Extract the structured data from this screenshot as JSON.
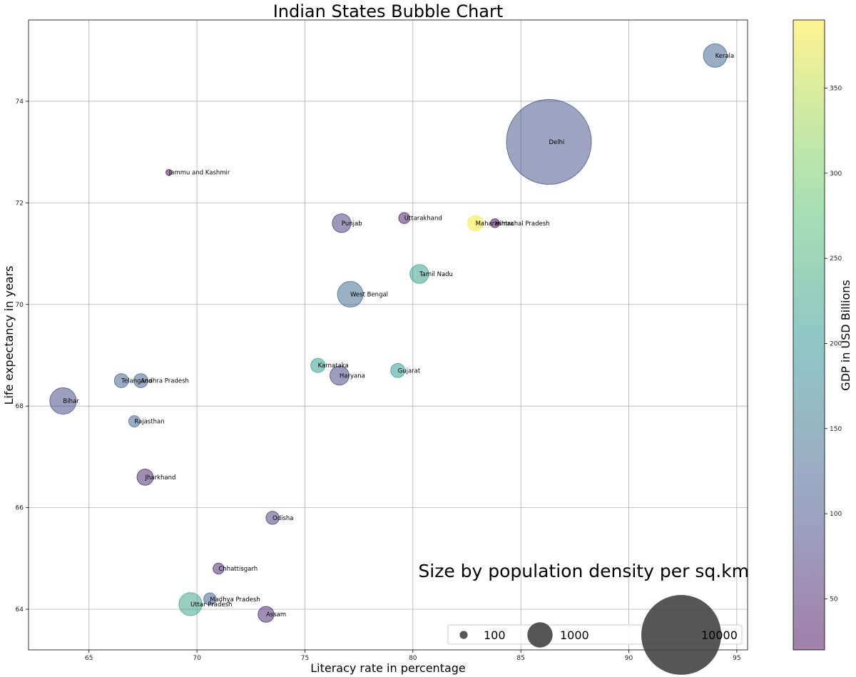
{
  "chart_data": {
    "type": "scatter",
    "title": "Indian States Bubble Chart",
    "xlabel": "Literacy rate in percentage",
    "ylabel": "Life expectancy in years",
    "xlim": [
      62.2,
      95.5
    ],
    "ylim": [
      63.2,
      75.6
    ],
    "xticks": [
      65,
      70,
      75,
      80,
      85,
      90,
      95
    ],
    "yticks": [
      64,
      66,
      68,
      70,
      72,
      74
    ],
    "grid": true,
    "size_annotation": "Size by population density per sq.km",
    "colorbar": {
      "label": "GDP in USD Billions",
      "range": [
        20,
        390
      ],
      "ticks": [
        50,
        100,
        150,
        200,
        250,
        300,
        350
      ],
      "colormap": [
        "#440154",
        "#3b528b",
        "#21918c",
        "#5ec962",
        "#fde725"
      ]
    },
    "size_legend": {
      "placement": "lower-right",
      "entries": [
        {
          "label": "100",
          "value": 100
        },
        {
          "label": "1000",
          "value": 1000
        },
        {
          "label": "10000",
          "value": 10000
        }
      ]
    },
    "points": [
      {
        "name": "Kerala",
        "x": 94.0,
        "y": 74.9,
        "size": 860,
        "gdp": 125
      },
      {
        "name": "Delhi",
        "x": 86.3,
        "y": 73.2,
        "size": 11300,
        "gdp": 100
      },
      {
        "name": "Jammu and Kashmir",
        "x": 68.7,
        "y": 72.6,
        "size": 56,
        "gdp": 25
      },
      {
        "name": "Punjab",
        "x": 76.7,
        "y": 71.6,
        "size": 550,
        "gdp": 75
      },
      {
        "name": "Uttarakhand",
        "x": 79.6,
        "y": 71.7,
        "size": 189,
        "gdp": 38
      },
      {
        "name": "Maharashtra",
        "x": 82.9,
        "y": 71.6,
        "size": 370,
        "gdp": 390
      },
      {
        "name": "Himachal Pradesh",
        "x": 83.8,
        "y": 71.6,
        "size": 123,
        "gdp": 25
      },
      {
        "name": "Tamil Nadu",
        "x": 80.3,
        "y": 70.6,
        "size": 555,
        "gdp": 220
      },
      {
        "name": "West Bengal",
        "x": 77.1,
        "y": 70.2,
        "size": 1030,
        "gdp": 135
      },
      {
        "name": "Karnataka",
        "x": 75.6,
        "y": 68.8,
        "size": 320,
        "gdp": 215
      },
      {
        "name": "Haryana",
        "x": 76.6,
        "y": 68.6,
        "size": 570,
        "gdp": 85
      },
      {
        "name": "Gujarat",
        "x": 79.3,
        "y": 68.7,
        "size": 310,
        "gdp": 210
      },
      {
        "name": "Telangana",
        "x": 66.5,
        "y": 68.5,
        "size": 310,
        "gdp": 120
      },
      {
        "name": "Andhra Pradesh",
        "x": 67.4,
        "y": 68.5,
        "size": 310,
        "gdp": 120
      },
      {
        "name": "Bihar",
        "x": 63.8,
        "y": 68.1,
        "size": 1100,
        "gdp": 90
      },
      {
        "name": "Rajasthan",
        "x": 67.1,
        "y": 67.7,
        "size": 200,
        "gdp": 125
      },
      {
        "name": "Jharkhand",
        "x": 67.6,
        "y": 66.6,
        "size": 414,
        "gdp": 50
      },
      {
        "name": "Odisha",
        "x": 73.5,
        "y": 65.8,
        "size": 270,
        "gdp": 80
      },
      {
        "name": "Chhattisgarh",
        "x": 71.0,
        "y": 64.8,
        "size": 189,
        "gdp": 50
      },
      {
        "name": "Madhya Pradesh",
        "x": 70.6,
        "y": 64.2,
        "size": 236,
        "gdp": 120
      },
      {
        "name": "Uttar Pradesh",
        "x": 69.7,
        "y": 64.1,
        "size": 829,
        "gdp": 230
      },
      {
        "name": "Assam",
        "x": 73.2,
        "y": 63.9,
        "size": 397,
        "gdp": 55
      }
    ]
  }
}
